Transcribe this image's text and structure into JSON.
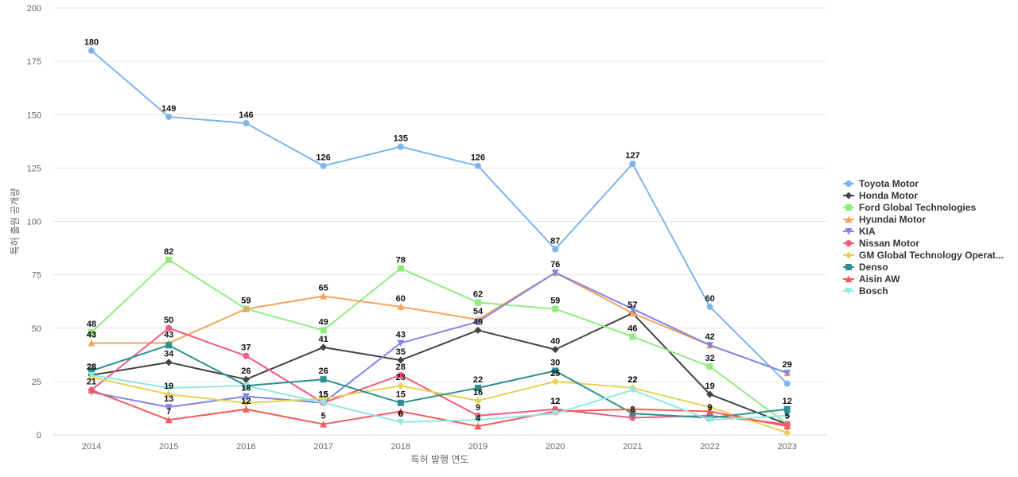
{
  "chart_data": {
    "type": "line",
    "xlabel": "특허 발행 연도",
    "ylabel": "특허 출원 공개량",
    "ylim": [
      0,
      200
    ],
    "yticks": [
      0,
      25,
      50,
      75,
      100,
      125,
      150,
      175,
      200
    ],
    "categories": [
      "2014",
      "2015",
      "2016",
      "2017",
      "2018",
      "2019",
      "2020",
      "2021",
      "2022",
      "2023"
    ],
    "grid": true,
    "legend_position": "right",
    "series": [
      {
        "name": "Toyota Motor",
        "color": "#7cb5ec",
        "marker": "circle",
        "values": [
          180,
          149,
          146,
          126,
          135,
          126,
          87,
          127,
          60,
          24
        ],
        "labels": [
          true,
          true,
          true,
          true,
          true,
          true,
          true,
          true,
          true,
          false
        ]
      },
      {
        "name": "Honda Motor",
        "color": "#434348",
        "marker": "diamond",
        "values": [
          28,
          34,
          26,
          41,
          35,
          49,
          40,
          57,
          19,
          5
        ],
        "labels": [
          true,
          true,
          true,
          true,
          true,
          true,
          true,
          true,
          true,
          true
        ]
      },
      {
        "name": "Ford Global Technologies",
        "color": "#90ed7d",
        "marker": "square",
        "values": [
          48,
          82,
          59,
          49,
          78,
          62,
          59,
          46,
          32,
          5
        ],
        "labels": [
          true,
          true,
          true,
          true,
          true,
          true,
          true,
          true,
          true,
          false
        ]
      },
      {
        "name": "Hyundai Motor",
        "color": "#f7a35c",
        "marker": "triangle",
        "values": [
          43,
          43,
          59,
          65,
          60,
          54,
          76,
          57,
          42,
          29
        ],
        "labels": [
          true,
          false,
          false,
          true,
          true,
          true,
          false,
          false,
          false,
          false
        ]
      },
      {
        "name": "KIA",
        "color": "#8085e9",
        "marker": "triangle-down",
        "values": [
          20,
          13,
          18,
          15,
          43,
          53,
          76,
          59,
          42,
          29
        ],
        "labels": [
          false,
          true,
          true,
          false,
          true,
          false,
          true,
          false,
          true,
          true
        ]
      },
      {
        "name": "Nissan Motor",
        "color": "#f15c80",
        "marker": "circle",
        "values": [
          21,
          50,
          37,
          15,
          28,
          9,
          12,
          8,
          9,
          5
        ],
        "labels": [
          false,
          true,
          true,
          true,
          true,
          true,
          true,
          false,
          true,
          false
        ]
      },
      {
        "name": "GM Global Technology Operat...",
        "color": "#e4d354",
        "marker": "diamond",
        "values": [
          27,
          19,
          15,
          17,
          23,
          16,
          25,
          22,
          13,
          1
        ],
        "labels": [
          false,
          true,
          false,
          false,
          true,
          true,
          true,
          true,
          false,
          false
        ]
      },
      {
        "name": "Denso",
        "color": "#2b908f",
        "marker": "square",
        "values": [
          30,
          42,
          23,
          26,
          15,
          22,
          30,
          10,
          8,
          12
        ],
        "labels": [
          false,
          false,
          false,
          true,
          true,
          true,
          true,
          false,
          false,
          true
        ]
      },
      {
        "name": "Aisin AW",
        "color": "#f45b5b",
        "marker": "triangle",
        "values": [
          21,
          7,
          12,
          5,
          11,
          4,
          11,
          12,
          11,
          4
        ],
        "labels": [
          true,
          true,
          true,
          true,
          false,
          true,
          false,
          false,
          false,
          false
        ]
      },
      {
        "name": "Bosch",
        "color": "#91e8e1",
        "marker": "triangle-down",
        "values": [
          28,
          22,
          23,
          15,
          6,
          7,
          10,
          21,
          7,
          9
        ],
        "labels": [
          false,
          false,
          false,
          true,
          true,
          false,
          false,
          false,
          false,
          false
        ]
      }
    ],
    "extra_labels": [
      {
        "x": "2014",
        "text": "43",
        "value": 43
      },
      {
        "x": "2014",
        "text": "28",
        "value": 28
      },
      {
        "x": "2015",
        "text": "43",
        "value": 43
      },
      {
        "x": "2016",
        "text": "12",
        "value": 12
      },
      {
        "x": "2017",
        "text": "15",
        "value": 15
      },
      {
        "x": "2018",
        "text": "6",
        "value": 6
      },
      {
        "x": "2019",
        "text": "4",
        "value": 4
      },
      {
        "x": "2020",
        "text": "12",
        "value": 12
      },
      {
        "x": "2021",
        "text": "22",
        "value": 22
      },
      {
        "x": "2021",
        "text": "8",
        "value": 8
      },
      {
        "x": "2022",
        "text": "9",
        "value": 9
      },
      {
        "x": "2023",
        "text": "5",
        "value": 5
      }
    ]
  }
}
